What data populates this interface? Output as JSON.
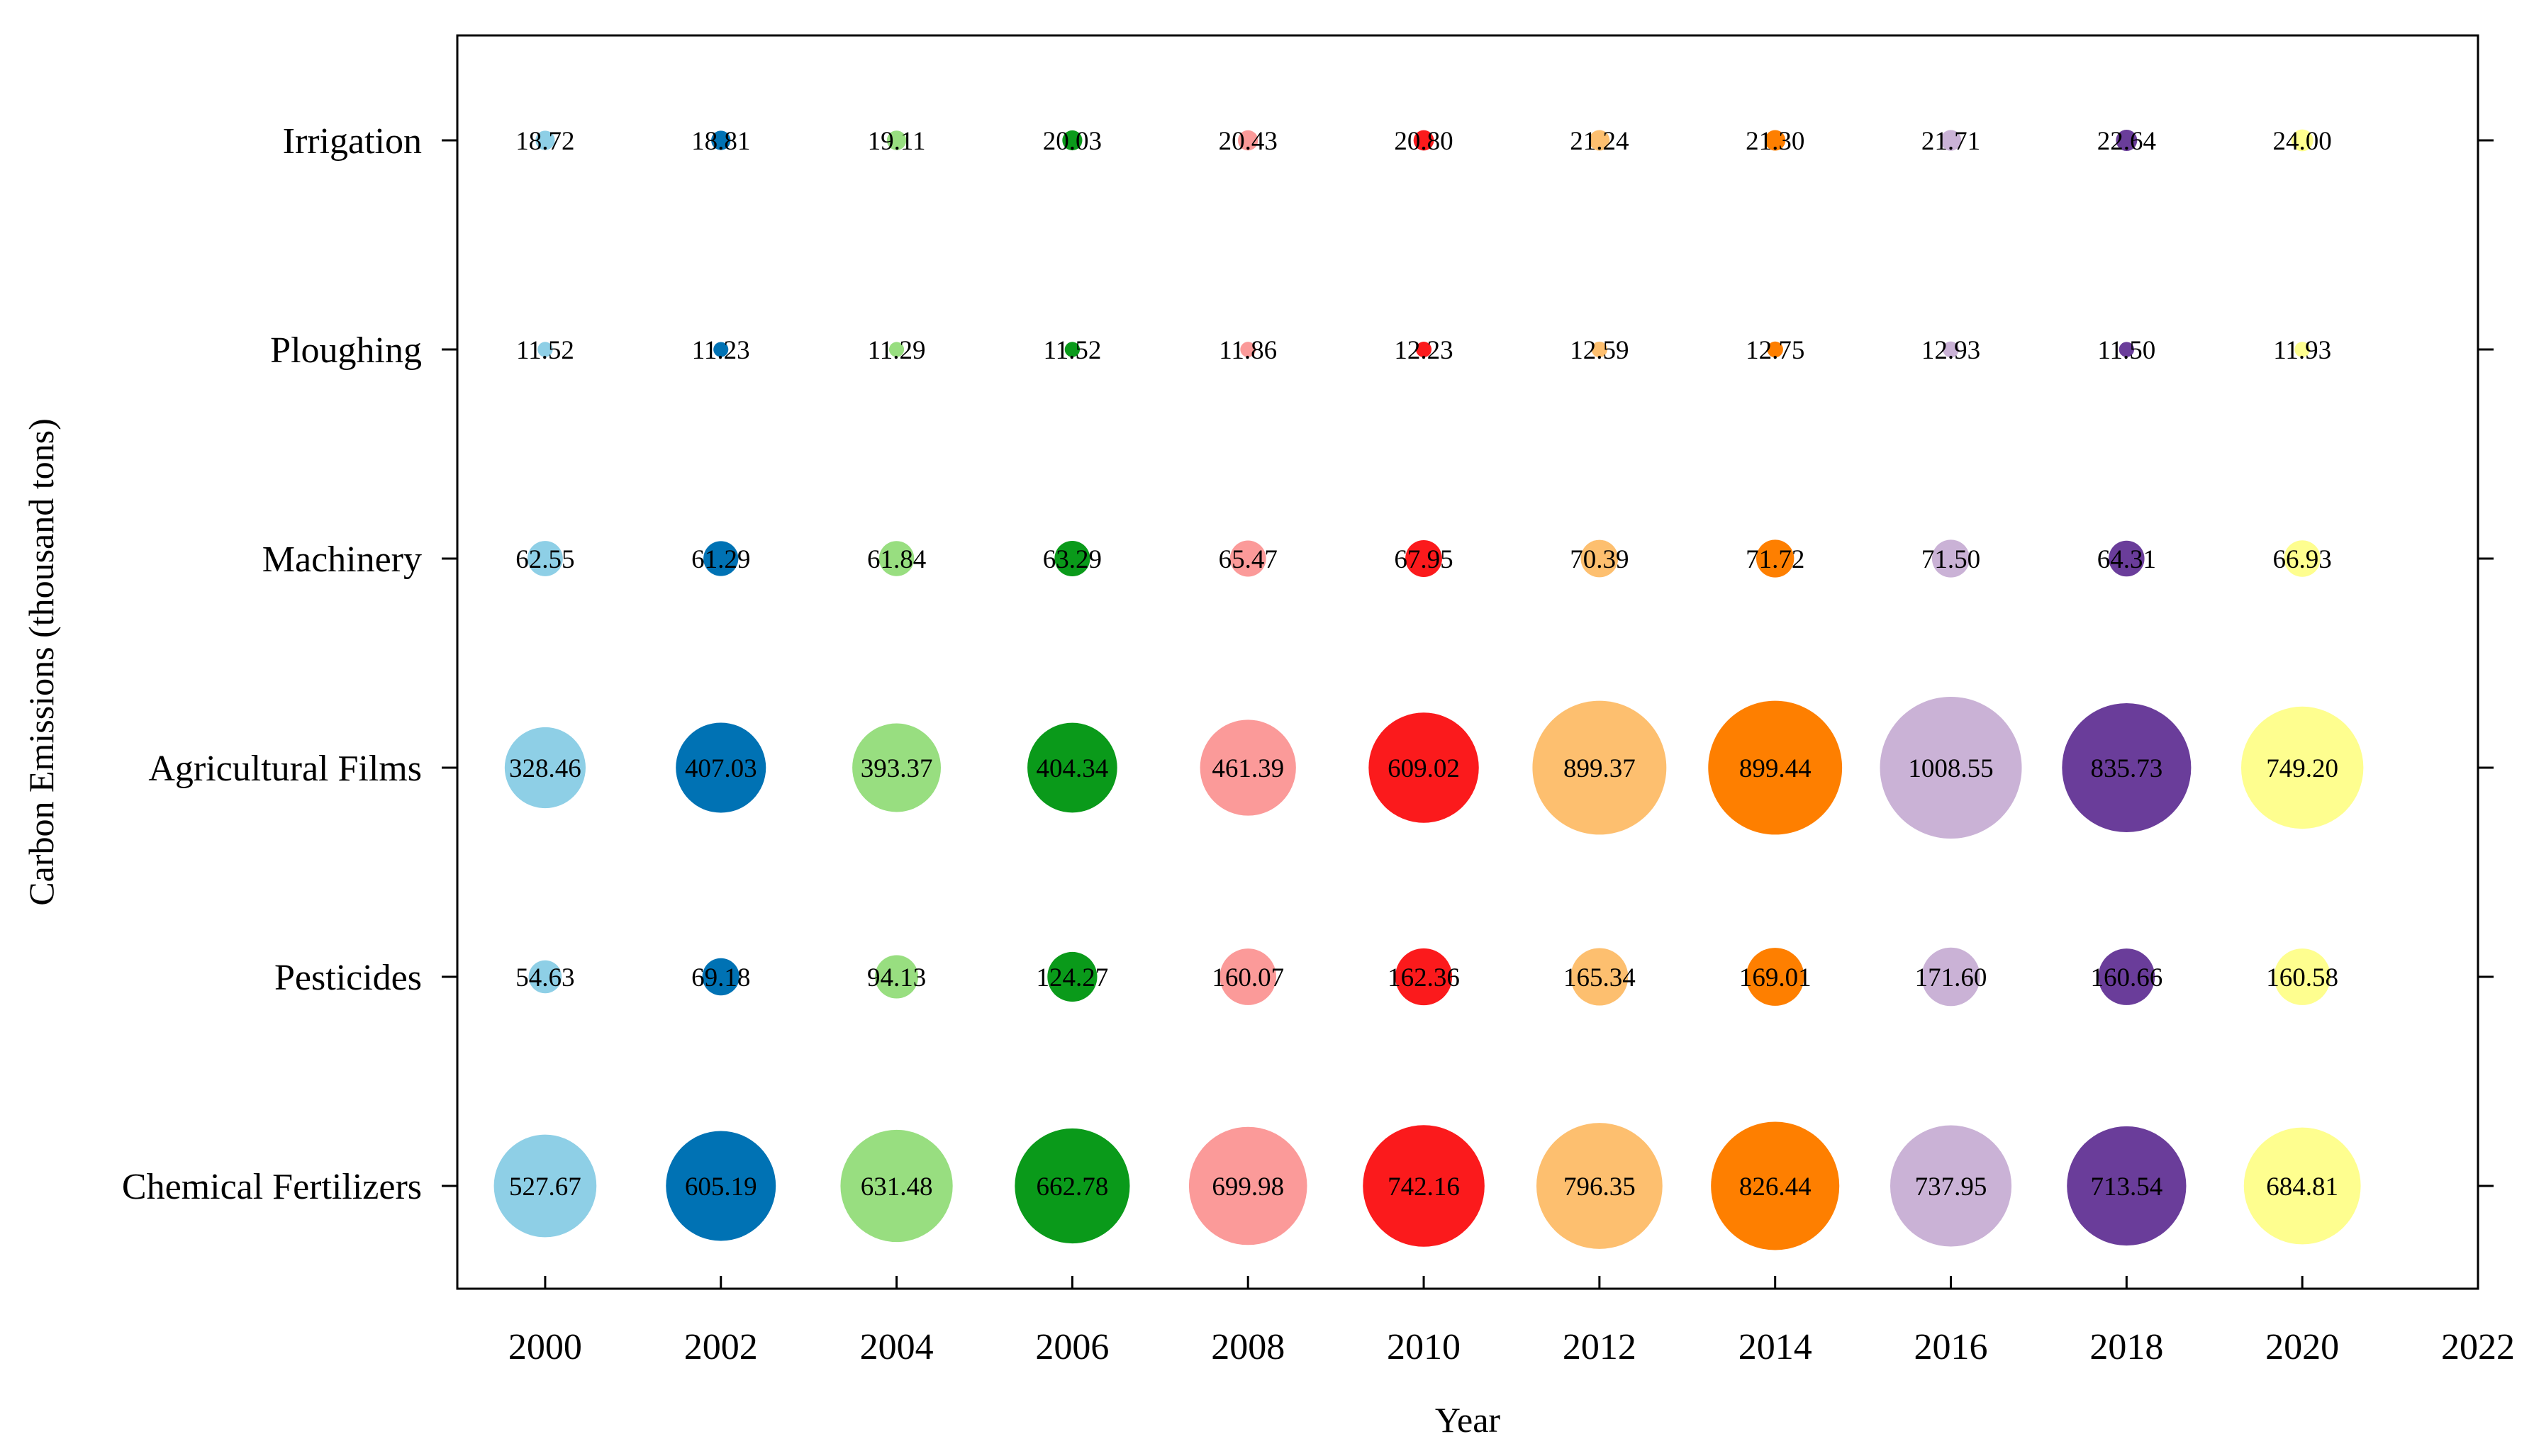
{
  "chart_data": {
    "type": "bubble",
    "title": "",
    "xlabel": "Year",
    "ylabel": "Carbon Emissions (thousand tons)",
    "xlim": [
      1999,
      2022
    ],
    "x_ticks": [
      "2000",
      "2002",
      "2004",
      "2006",
      "2008",
      "2010",
      "2012",
      "2014",
      "2016",
      "2018",
      "2020",
      "2022"
    ],
    "years": [
      2000,
      2002,
      2004,
      2006,
      2008,
      2010,
      2012,
      2014,
      2016,
      2018,
      2020
    ],
    "categories": [
      "Irrigation",
      "Ploughing",
      "Machinery",
      "Agricultural Films",
      "Pesticides",
      "Chemical Fertilizers"
    ],
    "year_colors": [
      "#8ecfe6",
      "#0072b4",
      "#98de80",
      "#0a9a1a",
      "#fb9a99",
      "#fb1a1c",
      "#fdbf6f",
      "#fe7f00",
      "#cab2d6",
      "#6a3d9a",
      "#fefe8f"
    ],
    "series": [
      {
        "name": "Irrigation",
        "labels": [
          "18.72",
          "18.81",
          "19.11",
          "20.03",
          "20.43",
          "20.80",
          "21.24",
          "21.30",
          "21.71",
          "22.64",
          "24.00"
        ],
        "values": [
          18.72,
          18.81,
          19.11,
          20.03,
          20.43,
          20.8,
          21.24,
          21.3,
          21.71,
          22.64,
          24.0
        ]
      },
      {
        "name": "Ploughing",
        "labels": [
          "11.52",
          "11.23",
          "11.29",
          "11.52",
          "11.86",
          "12.23",
          "12.59",
          "12.75",
          "12.93",
          "11.50",
          "11.93"
        ],
        "values": [
          11.52,
          11.23,
          11.29,
          11.52,
          11.86,
          12.23,
          12.59,
          12.75,
          12.93,
          11.5,
          11.93
        ]
      },
      {
        "name": "Machinery",
        "labels": [
          "62.55",
          "61.29",
          "61.84",
          "63.29",
          "65.47",
          "67.95",
          "70.39",
          "71.72",
          "71.50",
          "64.31",
          "66.93"
        ],
        "values": [
          62.55,
          61.29,
          61.84,
          63.29,
          65.47,
          67.95,
          70.39,
          71.72,
          71.5,
          64.31,
          66.93
        ]
      },
      {
        "name": "Agricultural Films",
        "labels": [
          "328.46",
          "407.03",
          "393.37",
          "404.34",
          "461.39",
          "609.02",
          "899.37",
          "899.44",
          "1008.55",
          "835.73",
          "749.20"
        ],
        "values": [
          328.46,
          407.03,
          393.37,
          404.34,
          461.39,
          609.02,
          899.37,
          899.44,
          1008.55,
          835.73,
          749.2
        ]
      },
      {
        "name": "Pesticides",
        "labels": [
          "54.63",
          "69.18",
          "94.13",
          "124.27",
          "160.07",
          "162.36",
          "165.34",
          "169.01",
          "171.60",
          "160.66",
          "160.58"
        ],
        "values": [
          54.63,
          69.18,
          94.13,
          124.27,
          160.07,
          162.36,
          165.34,
          169.01,
          171.6,
          160.66,
          160.58
        ]
      },
      {
        "name": "Chemical Fertilizers",
        "labels": [
          "527.67",
          "605.19",
          "631.48",
          "662.78",
          "699.98",
          "742.16",
          "796.35",
          "826.44",
          "737.95",
          "713.54",
          "684.81"
        ],
        "values": [
          527.67,
          605.19,
          631.48,
          662.78,
          699.98,
          742.16,
          796.35,
          826.44,
          737.95,
          713.54,
          684.81
        ]
      }
    ]
  }
}
